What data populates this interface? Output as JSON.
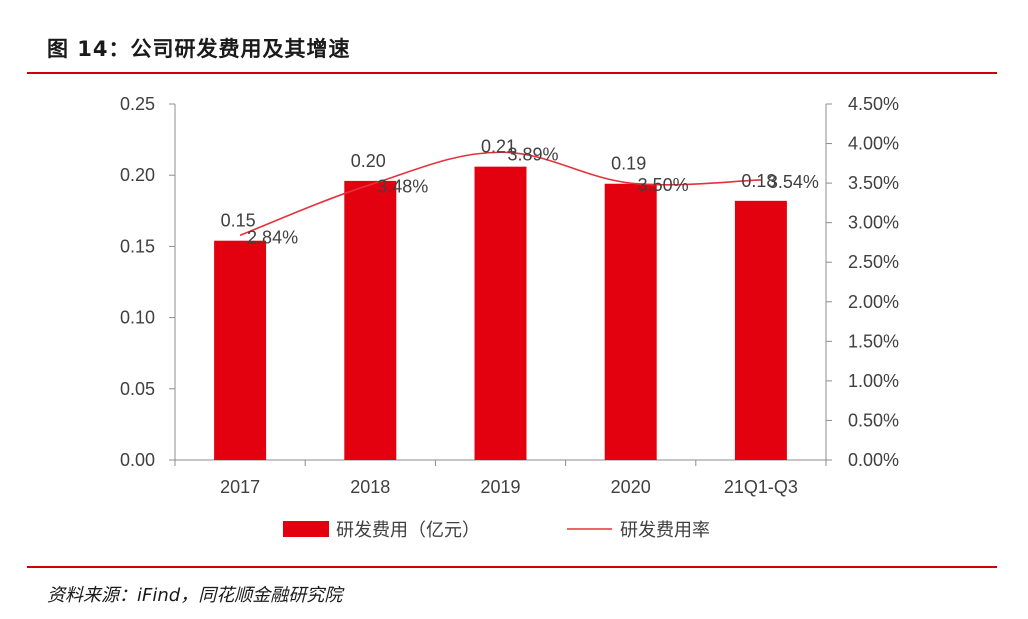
{
  "header": {
    "title": "图 14：公司研发费用及其增速"
  },
  "footer": {
    "source": "资料来源：iFind，同花顺金融研究院"
  },
  "colors": {
    "bar": "#e3000f",
    "line": "#e8303a",
    "rule": "#cc0000"
  },
  "chart_data": {
    "type": "bar",
    "categories": [
      "2017",
      "2018",
      "2019",
      "2020",
      "21Q1-Q3"
    ],
    "series": [
      {
        "name": "研发费用（亿元）",
        "type": "bar",
        "axis": "left",
        "values": [
          0.154,
          0.196,
          0.206,
          0.194,
          0.182
        ],
        "labels": [
          "0.15",
          "0.20",
          "0.21",
          "0.19",
          "0.18"
        ]
      },
      {
        "name": "研发费用率",
        "type": "line",
        "axis": "right",
        "values": [
          2.84,
          3.48,
          3.89,
          3.5,
          3.54
        ],
        "labels": [
          "2.84%",
          "3.48%",
          "3.89%",
          "3.50%",
          "3.54%"
        ]
      }
    ],
    "left_axis": {
      "ylim": [
        0,
        0.25
      ],
      "ticks": [
        "0.00",
        "0.05",
        "0.10",
        "0.15",
        "0.20",
        "0.25"
      ]
    },
    "right_axis": {
      "ylim": [
        0,
        4.5
      ],
      "ticks": [
        "0.00%",
        "0.50%",
        "1.00%",
        "1.50%",
        "2.00%",
        "2.50%",
        "3.00%",
        "3.50%",
        "4.00%",
        "4.50%"
      ]
    },
    "legend_position": "bottom",
    "grid": false
  }
}
